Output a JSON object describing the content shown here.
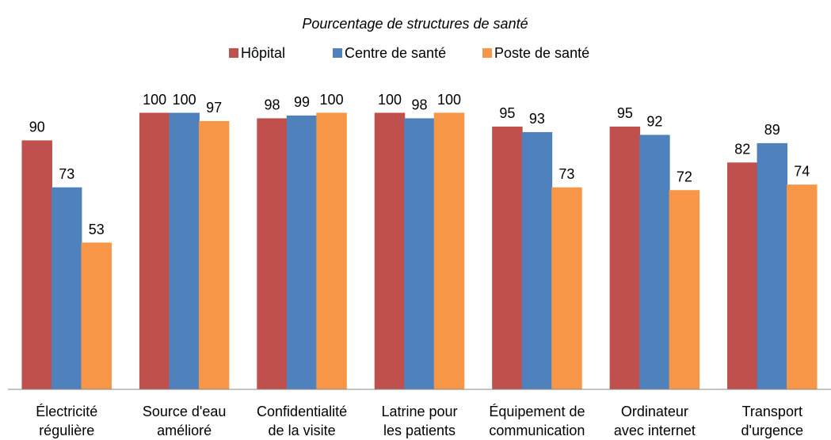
{
  "chart_data": {
    "type": "bar",
    "title": "Pourcentage de structures de santé",
    "categories": [
      [
        "Électricité",
        "régulière"
      ],
      [
        "Source d'eau",
        "amélioré"
      ],
      [
        "Confidentialité",
        "de la visite"
      ],
      [
        "Latrine pour",
        "les patients"
      ],
      [
        "Équipement de",
        "communication"
      ],
      [
        "Ordinateur",
        "avec internet"
      ],
      [
        "Transport",
        "d'urgence"
      ]
    ],
    "series": [
      {
        "name": "Hôpital",
        "color": "#c0504d",
        "values": [
          90,
          100,
          98,
          100,
          95,
          95,
          82
        ]
      },
      {
        "name": "Centre de santé",
        "color": "#4f81bd",
        "values": [
          73,
          100,
          99,
          98,
          93,
          92,
          89
        ]
      },
      {
        "name": "Poste de santé",
        "color": "#f79646",
        "values": [
          53,
          97,
          100,
          100,
          73,
          72,
          74
        ]
      }
    ],
    "ylim": [
      0,
      100
    ],
    "legend": "top"
  }
}
